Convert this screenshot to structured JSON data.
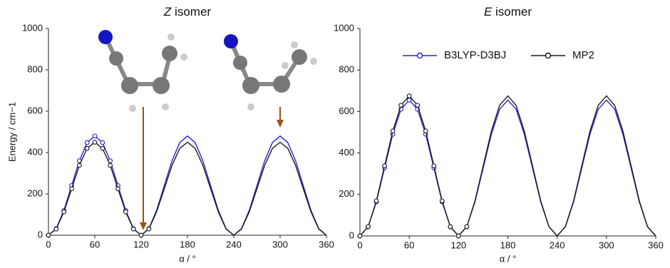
{
  "chart_data": [
    {
      "type": "line",
      "title_symbol": "Z",
      "title_text": "isomer",
      "ylabel": "Energy / cm−1",
      "xlabel": "α / °",
      "xlim": [
        0,
        360
      ],
      "xticks": [
        0,
        60,
        120,
        180,
        240,
        300,
        360
      ],
      "ylim": [
        0,
        1000
      ],
      "yticks": [
        0,
        200,
        400,
        600,
        800,
        1000
      ],
      "legend": false,
      "x": [
        0,
        10,
        20,
        30,
        40,
        50,
        60,
        70,
        80,
        90,
        100,
        110,
        120,
        130,
        140,
        150,
        160,
        170,
        180,
        190,
        200,
        210,
        220,
        230,
        240,
        250,
        260,
        270,
        280,
        290,
        300,
        310,
        320,
        330,
        340,
        350,
        360
      ],
      "marker_x": [
        0,
        10,
        20,
        30,
        40,
        50,
        60,
        70,
        80,
        90,
        100,
        110,
        120,
        130
      ],
      "series": [
        {
          "color": "#2424d6",
          "values": [
            0,
            32,
            120,
            240,
            360,
            448,
            480,
            448,
            360,
            240,
            120,
            32,
            0,
            32,
            120,
            240,
            360,
            448,
            480,
            448,
            360,
            240,
            120,
            32,
            0,
            32,
            120,
            240,
            360,
            448,
            480,
            448,
            360,
            240,
            120,
            32,
            0
          ],
          "marker_values": [
            0,
            32,
            120,
            240,
            360,
            448,
            480,
            448,
            360,
            240,
            120,
            32,
            0,
            32
          ]
        },
        {
          "color": "#1a1a1a",
          "values": [
            0,
            30,
            113,
            225,
            338,
            420,
            450,
            420,
            338,
            225,
            113,
            30,
            0,
            30,
            113,
            225,
            338,
            420,
            450,
            420,
            338,
            225,
            113,
            30,
            0,
            30,
            113,
            225,
            338,
            420,
            450,
            420,
            338,
            225,
            113,
            30,
            0
          ],
          "marker_values": [
            0,
            30,
            113,
            225,
            338,
            420,
            450,
            420,
            338,
            225,
            113,
            30,
            0,
            30
          ]
        }
      ]
    },
    {
      "type": "line",
      "title_symbol": "E",
      "title_text": "isomer",
      "xlabel": "α / °",
      "xlim": [
        0,
        360
      ],
      "xticks": [
        0,
        60,
        120,
        180,
        240,
        300,
        360
      ],
      "ylim": [
        0,
        1000
      ],
      "yticks": [
        0,
        200,
        400,
        600,
        800,
        1000
      ],
      "legend": true,
      "x": [
        0,
        10,
        20,
        30,
        40,
        50,
        60,
        70,
        80,
        90,
        100,
        110,
        120,
        130,
        140,
        150,
        160,
        170,
        180,
        190,
        200,
        210,
        220,
        230,
        240,
        250,
        260,
        270,
        280,
        290,
        300,
        310,
        320,
        330,
        340,
        350,
        360
      ],
      "marker_x": [
        0,
        10,
        20,
        30,
        40,
        50,
        60,
        70,
        80,
        90,
        100,
        110,
        120,
        130
      ],
      "series": [
        {
          "name": "B3LYP-D3BJ",
          "color": "#2424d6",
          "values": [
            0,
            44,
            164,
            328,
            491,
            611,
            655,
            611,
            491,
            328,
            164,
            44,
            0,
            44,
            164,
            328,
            491,
            611,
            655,
            611,
            491,
            328,
            164,
            44,
            0,
            44,
            164,
            328,
            491,
            611,
            655,
            611,
            491,
            328,
            164,
            44,
            0
          ],
          "marker_values": [
            0,
            44,
            164,
            328,
            491,
            611,
            655,
            611,
            491,
            328,
            164,
            44,
            0,
            44
          ]
        },
        {
          "name": "MP2",
          "color": "#1a1a1a",
          "values": [
            0,
            45,
            169,
            338,
            506,
            630,
            675,
            630,
            506,
            338,
            169,
            45,
            0,
            45,
            169,
            338,
            506,
            630,
            675,
            630,
            506,
            338,
            169,
            45,
            0,
            45,
            169,
            338,
            506,
            630,
            675,
            630,
            506,
            338,
            169,
            45,
            0
          ],
          "marker_values": [
            0,
            45,
            169,
            338,
            506,
            630,
            675,
            630,
            506,
            338,
            169,
            45,
            0,
            45
          ]
        }
      ]
    }
  ]
}
